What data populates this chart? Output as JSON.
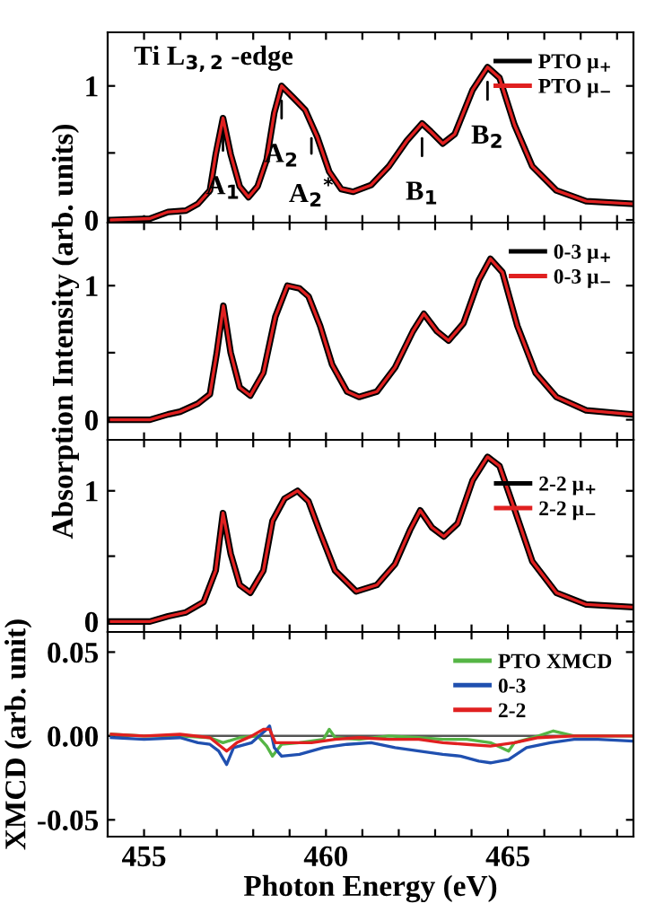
{
  "chart_data": [
    {
      "type": "line",
      "x": [
        454.1,
        455.16,
        455.66,
        456.15,
        456.48,
        456.81,
        456.97,
        457.17,
        457.38,
        457.63,
        457.87,
        458.12,
        458.37,
        458.58,
        458.78,
        459.11,
        459.43,
        459.76,
        460.09,
        460.42,
        460.75,
        461.24,
        461.73,
        462.22,
        462.64,
        462.88,
        463.21,
        463.54,
        464.03,
        464.44,
        464.77,
        465.18,
        465.67,
        466.33,
        467.15,
        468.4
      ],
      "series": [
        {
          "name": "PTO μ$_{+}$",
          "color": "#000000",
          "values": [
            0.0,
            0.01,
            0.06,
            0.07,
            0.12,
            0.22,
            0.49,
            0.76,
            0.49,
            0.25,
            0.17,
            0.25,
            0.45,
            0.8,
            1.0,
            0.91,
            0.82,
            0.62,
            0.36,
            0.23,
            0.21,
            0.26,
            0.4,
            0.59,
            0.72,
            0.66,
            0.57,
            0.64,
            0.97,
            1.14,
            1.06,
            0.71,
            0.4,
            0.22,
            0.14,
            0.12
          ]
        },
        {
          "name": "PTO μ$_{−}$",
          "color": "#e02020",
          "values": [
            0.0,
            0.01,
            0.06,
            0.07,
            0.12,
            0.22,
            0.49,
            0.76,
            0.49,
            0.25,
            0.17,
            0.25,
            0.45,
            0.8,
            1.0,
            0.91,
            0.82,
            0.62,
            0.36,
            0.23,
            0.21,
            0.26,
            0.4,
            0.59,
            0.72,
            0.66,
            0.57,
            0.64,
            0.97,
            1.14,
            1.06,
            0.71,
            0.4,
            0.22,
            0.14,
            0.12
          ]
        }
      ],
      "xlim": [
        454.0,
        468.45
      ],
      "xticks": [
        {
          "value": 455,
          "label": null
        },
        {
          "value": 456,
          "label": null
        },
        {
          "value": 457,
          "label": null
        },
        {
          "value": 458,
          "label": null
        },
        {
          "value": 459,
          "label": null
        },
        {
          "value": 460,
          "label": null
        },
        {
          "value": 461,
          "label": null
        },
        {
          "value": 462,
          "label": null
        },
        {
          "value": 463,
          "label": null
        },
        {
          "value": 464,
          "label": null
        },
        {
          "value": 465,
          "label": null
        },
        {
          "value": 466,
          "label": null
        },
        {
          "value": 467,
          "label": null
        },
        {
          "value": 468,
          "label": null
        }
      ],
      "ylim": [
        -0.02,
        1.4
      ],
      "yticks": [
        0,
        {
          "value": 0.5,
          "label": null
        },
        1
      ],
      "tick_labels": "y",
      "legend": "top right",
      "annotations": [
        "Ti L$_{3,2}$ -edge",
        {
          "text": "A$_{1}$",
          "x": 457.17,
          "y": 0.76
        },
        {
          "text": "A$_{2}$",
          "x": 458.78,
          "y": 1.0
        },
        {
          "text": "A$_{2}$$^{*}$",
          "x": 459.6,
          "y": 0.72
        },
        {
          "text": "B$_{1}$",
          "x": 462.64,
          "y": 0.72
        },
        {
          "text": "B$_{2}$",
          "x": 464.44,
          "y": 1.14
        }
      ]
    },
    {
      "type": "line",
      "x": [
        454.1,
        455.16,
        455.66,
        455.99,
        456.48,
        456.81,
        457.0,
        457.18,
        457.38,
        457.63,
        457.92,
        458.28,
        458.61,
        458.94,
        459.27,
        459.52,
        459.84,
        460.17,
        460.58,
        460.91,
        461.4,
        461.9,
        462.39,
        462.69,
        463.05,
        463.37,
        463.78,
        464.2,
        464.52,
        464.85,
        465.26,
        465.76,
        466.33,
        467.15,
        468.4
      ],
      "series": [
        {
          "name": "0-3 μ$_{+}$",
          "color": "#000000",
          "values": [
            0.0,
            0.0,
            0.04,
            0.06,
            0.12,
            0.19,
            0.5,
            0.85,
            0.5,
            0.24,
            0.18,
            0.35,
            0.77,
            1.0,
            0.98,
            0.92,
            0.7,
            0.41,
            0.21,
            0.17,
            0.21,
            0.39,
            0.66,
            0.79,
            0.66,
            0.59,
            0.72,
            1.04,
            1.2,
            1.1,
            0.7,
            0.35,
            0.17,
            0.07,
            0.04
          ]
        },
        {
          "name": "0-3 μ$_{−}$",
          "color": "#e02020",
          "values": [
            0.0,
            0.0,
            0.04,
            0.06,
            0.12,
            0.19,
            0.5,
            0.85,
            0.5,
            0.24,
            0.18,
            0.35,
            0.77,
            1.0,
            0.98,
            0.92,
            0.7,
            0.41,
            0.21,
            0.17,
            0.21,
            0.39,
            0.66,
            0.79,
            0.66,
            0.59,
            0.72,
            1.04,
            1.2,
            1.1,
            0.7,
            0.35,
            0.17,
            0.07,
            0.04
          ]
        }
      ],
      "xlim": [
        454.0,
        468.45
      ],
      "xticks": [
        {
          "value": 455,
          "label": null
        },
        {
          "value": 456,
          "label": null
        },
        {
          "value": 457,
          "label": null
        },
        {
          "value": 458,
          "label": null
        },
        {
          "value": 459,
          "label": null
        },
        {
          "value": 460,
          "label": null
        },
        {
          "value": 461,
          "label": null
        },
        {
          "value": 462,
          "label": null
        },
        {
          "value": 463,
          "label": null
        },
        {
          "value": 464,
          "label": null
        },
        {
          "value": 465,
          "label": null
        },
        {
          "value": 466,
          "label": null
        },
        {
          "value": 467,
          "label": null
        },
        {
          "value": 468,
          "label": null
        }
      ],
      "ylim": [
        -0.15,
        1.47
      ],
      "yticks": [
        0,
        {
          "value": 0.5,
          "label": null
        },
        1
      ],
      "tick_labels": "y",
      "legend": "top right",
      "ylabel": "Absorption Intensity (arb. units)"
    },
    {
      "type": "line",
      "x": [
        454.1,
        455.16,
        455.66,
        456.15,
        456.64,
        456.97,
        457.17,
        457.38,
        457.63,
        457.92,
        458.28,
        458.53,
        458.86,
        459.22,
        459.52,
        459.84,
        460.25,
        460.83,
        461.4,
        461.9,
        462.31,
        462.59,
        462.91,
        463.24,
        463.62,
        464.03,
        464.44,
        464.77,
        465.18,
        465.67,
        466.33,
        467.15,
        468.4
      ],
      "series": [
        {
          "name": "2-2 μ$_{+}$",
          "color": "#000000",
          "values": [
            0.0,
            0.0,
            0.04,
            0.07,
            0.15,
            0.39,
            0.83,
            0.52,
            0.28,
            0.22,
            0.39,
            0.77,
            0.94,
            1.0,
            0.92,
            0.68,
            0.39,
            0.23,
            0.28,
            0.44,
            0.7,
            0.85,
            0.72,
            0.65,
            0.75,
            1.08,
            1.26,
            1.19,
            0.86,
            0.46,
            0.22,
            0.13,
            0.11
          ]
        },
        {
          "name": "2-2 μ$_{−}$",
          "color": "#e02020",
          "values": [
            0.0,
            0.0,
            0.04,
            0.07,
            0.15,
            0.39,
            0.83,
            0.52,
            0.28,
            0.22,
            0.39,
            0.77,
            0.94,
            1.0,
            0.92,
            0.68,
            0.39,
            0.23,
            0.28,
            0.44,
            0.7,
            0.85,
            0.72,
            0.65,
            0.75,
            1.08,
            1.26,
            1.19,
            0.86,
            0.46,
            0.22,
            0.13,
            0.11
          ]
        }
      ],
      "xlim": [
        454.0,
        468.45
      ],
      "xticks": [
        {
          "value": 455,
          "label": null
        },
        {
          "value": 456,
          "label": null
        },
        {
          "value": 457,
          "label": null
        },
        {
          "value": 458,
          "label": null
        },
        {
          "value": 459,
          "label": null
        },
        {
          "value": 460,
          "label": null
        },
        {
          "value": 461,
          "label": null
        },
        {
          "value": 462,
          "label": null
        },
        {
          "value": 463,
          "label": null
        },
        {
          "value": 464,
          "label": null
        },
        {
          "value": 465,
          "label": null
        },
        {
          "value": 466,
          "label": null
        },
        {
          "value": 467,
          "label": null
        },
        {
          "value": 468,
          "label": null
        }
      ],
      "ylim": [
        -0.08,
        1.39
      ],
      "yticks": [
        0,
        {
          "value": 0.5,
          "label": null
        },
        1
      ],
      "tick_labels": "y",
      "legend": "top right"
    },
    {
      "type": "line",
      "series": [
        {
          "name": "PTO XMCD",
          "color": "#55b545",
          "x": [
            454.1,
            455.0,
            455.99,
            456.81,
            457.17,
            457.63,
            458.12,
            458.37,
            458.53,
            458.78,
            459.27,
            459.93,
            460.09,
            460.25,
            460.91,
            461.73,
            462.55,
            463.21,
            463.87,
            464.52,
            465.02,
            465.18,
            465.84,
            466.25,
            466.82,
            467.48,
            468.4
          ],
          "values": [
            0.001,
            0.0,
            0.0,
            -0.001,
            -0.004,
            -0.001,
            0.0,
            -0.006,
            -0.012,
            -0.005,
            -0.004,
            -0.002,
            0.004,
            -0.001,
            -0.002,
            0.0,
            -0.001,
            -0.002,
            -0.002,
            -0.004,
            -0.009,
            -0.004,
            0.0,
            0.003,
            0.0,
            0.0,
            0.0
          ]
        },
        {
          "name": "0-3",
          "color": "#2050b0",
          "x": [
            454.1,
            455.0,
            455.99,
            456.48,
            456.81,
            457.05,
            457.27,
            457.46,
            457.96,
            458.37,
            458.45,
            458.58,
            458.78,
            459.27,
            459.93,
            460.58,
            461.24,
            461.9,
            462.55,
            463.21,
            463.7,
            464.2,
            464.52,
            465.02,
            465.51,
            466.17,
            466.82,
            467.48,
            468.4
          ],
          "values": [
            -0.001,
            -0.002,
            -0.001,
            -0.004,
            -0.005,
            -0.009,
            -0.017,
            -0.007,
            -0.004,
            0.004,
            0.006,
            -0.007,
            -0.012,
            -0.011,
            -0.007,
            -0.005,
            -0.004,
            -0.007,
            -0.009,
            -0.011,
            -0.012,
            -0.015,
            -0.016,
            -0.014,
            -0.007,
            -0.004,
            -0.002,
            -0.002,
            -0.003
          ]
        },
        {
          "name": "2-2",
          "color": "#e02020",
          "x": [
            454.1,
            455.0,
            455.99,
            456.81,
            457.27,
            457.55,
            457.96,
            458.28,
            458.45,
            458.61,
            458.94,
            459.6,
            460.25,
            460.91,
            461.73,
            462.55,
            463.21,
            463.87,
            464.52,
            465.18,
            465.84,
            466.82,
            468.4
          ],
          "values": [
            0.001,
            0.0,
            0.001,
            -0.001,
            -0.009,
            -0.004,
            0.0,
            0.004,
            0.004,
            -0.004,
            -0.004,
            -0.004,
            -0.002,
            -0.001,
            -0.002,
            -0.002,
            -0.004,
            -0.005,
            -0.006,
            -0.004,
            -0.001,
            0.0,
            0.0
          ]
        }
      ],
      "xlim": [
        454.0,
        468.45
      ],
      "xticks": [
        455,
        {
          "value": 456,
          "label": null
        },
        {
          "value": 457,
          "label": null
        },
        {
          "value": 458,
          "label": null
        },
        {
          "value": 459,
          "label": null
        },
        460,
        {
          "value": 461,
          "label": null
        },
        {
          "value": 462,
          "label": null
        },
        {
          "value": 463,
          "label": null
        },
        {
          "value": 464,
          "label": null
        },
        465,
        {
          "value": 466,
          "label": null
        },
        {
          "value": 467,
          "label": null
        },
        {
          "value": 468,
          "label": null
        }
      ],
      "ylim": [
        -0.06,
        0.062
      ],
      "yticks": [
        {
          "value": 0.05,
          "label": "0.05"
        },
        {
          "value": 0,
          "label": "0.00"
        },
        {
          "value": -0.05,
          "label": "-0.05"
        }
      ],
      "legend": "top right",
      "xlabel": "Photon Energy (eV)",
      "ylabel": "XMCD (arb. unit)",
      "ref_lines": [
        {
          "axis": "y",
          "value": 0,
          "color": "#555555",
          "line_style": "solid"
        }
      ]
    }
  ]
}
